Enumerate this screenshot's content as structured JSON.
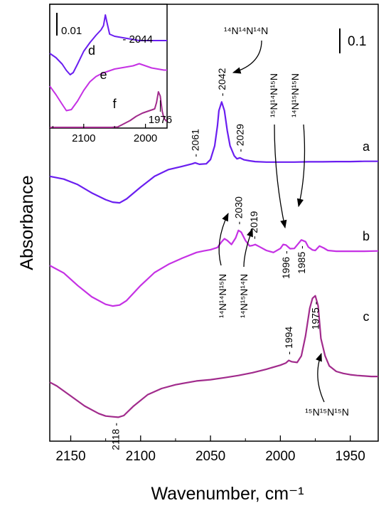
{
  "chart_data": [
    {
      "type": "line",
      "xlabel": "Wavenumber, cm⁻¹",
      "ylabel": "Absorbance",
      "x_reversed": true,
      "xlim": [
        2165,
        1930
      ],
      "x_ticks": [
        2150,
        2100,
        2050,
        2000,
        1950
      ],
      "scale_bar": "0.1",
      "series": [
        {
          "name": "a",
          "color": "#6a1ef0",
          "x": [
            2165,
            2155,
            2145,
            2135,
            2125,
            2120,
            2115,
            2110,
            2100,
            2090,
            2080,
            2070,
            2063,
            2061,
            2058,
            2053,
            2050,
            2047,
            2045,
            2044,
            2042,
            2040,
            2038,
            2036,
            2033,
            2031,
            2029,
            2026,
            2022,
            2018,
            2010,
            2000,
            1990,
            1980,
            1970,
            1960,
            1950,
            1940,
            1930
          ],
          "y": [
            -0.062,
            -0.073,
            -0.095,
            -0.128,
            -0.155,
            -0.165,
            -0.168,
            -0.152,
            -0.105,
            -0.062,
            -0.035,
            -0.022,
            -0.012,
            -0.008,
            -0.014,
            -0.012,
            0.005,
            0.06,
            0.14,
            0.2,
            0.235,
            0.2,
            0.12,
            0.06,
            0.02,
            0.008,
            0.012,
            0.004,
            0.0,
            -0.003,
            -0.005,
            -0.005,
            -0.005,
            -0.004,
            -0.004,
            -0.003,
            -0.003,
            -0.002,
            -0.002
          ],
          "peak_labels": [
            "2061",
            "2042",
            "2029"
          ]
        },
        {
          "name": "b",
          "color": "#c531e4",
          "x": [
            2165,
            2155,
            2145,
            2135,
            2125,
            2120,
            2115,
            2110,
            2100,
            2090,
            2080,
            2070,
            2060,
            2055,
            2050,
            2045,
            2042,
            2040,
            2038,
            2035,
            2032,
            2030,
            2028,
            2025,
            2022,
            2020,
            2018,
            2015,
            2010,
            2005,
            2000,
            1998,
            1996,
            1993,
            1990,
            1987,
            1985,
            1982,
            1980,
            1977,
            1975,
            1972,
            1969,
            1966,
            1960,
            1950,
            1940,
            1930
          ],
          "y": [
            -0.06,
            -0.09,
            -0.14,
            -0.185,
            -0.215,
            -0.222,
            -0.218,
            -0.2,
            -0.14,
            -0.088,
            -0.055,
            -0.03,
            -0.008,
            -0.002,
            0.003,
            0.012,
            0.035,
            0.047,
            0.04,
            0.024,
            0.05,
            0.08,
            0.073,
            0.04,
            0.018,
            0.02,
            0.024,
            0.015,
            0.0,
            -0.008,
            0.008,
            0.024,
            0.022,
            0.007,
            0.008,
            0.028,
            0.042,
            0.035,
            0.014,
            0.002,
            0.0,
            0.018,
            0.01,
            0.0,
            -0.003,
            -0.003,
            -0.003,
            -0.002
          ],
          "peak_labels": [
            "2030",
            "2019",
            "1996",
            "1985"
          ]
        },
        {
          "name": "c",
          "color": "#a12b8c",
          "x": [
            2165,
            2160,
            2150,
            2140,
            2130,
            2125,
            2120,
            2116,
            2112,
            2105,
            2095,
            2085,
            2075,
            2060,
            2050,
            2040,
            2030,
            2020,
            2010,
            2000,
            1996,
            1994,
            1992,
            1988,
            1985,
            1982,
            1979,
            1977,
            1975,
            1973,
            1971,
            1968,
            1965,
            1960,
            1955,
            1950,
            1945,
            1940,
            1935,
            1930
          ],
          "y": [
            -0.205,
            -0.22,
            -0.26,
            -0.3,
            -0.33,
            -0.34,
            -0.343,
            -0.345,
            -0.338,
            -0.3,
            -0.255,
            -0.23,
            -0.215,
            -0.2,
            -0.195,
            -0.187,
            -0.178,
            -0.167,
            -0.153,
            -0.137,
            -0.128,
            -0.118,
            -0.123,
            -0.126,
            -0.1,
            -0.02,
            0.09,
            0.13,
            0.14,
            0.1,
            -0.03,
            -0.1,
            -0.14,
            -0.162,
            -0.17,
            -0.175,
            -0.178,
            -0.18,
            -0.182,
            -0.182
          ],
          "peak_labels": [
            "2118",
            "1994",
            "1975"
          ]
        }
      ],
      "species_annotations": [
        {
          "label": "¹⁴N¹⁴N¹⁴N",
          "points_to": "2042"
        },
        {
          "label": "¹⁵N¹⁴N¹⁵N",
          "points_to": "1996"
        },
        {
          "label": "¹⁴N¹⁵N¹⁵N",
          "points_to": "1985"
        },
        {
          "label": "¹⁴N¹⁴N¹⁵N",
          "points_to": "2030"
        },
        {
          "label": "¹⁴N¹⁵N¹⁴N",
          "points_to": "2019"
        },
        {
          "label": "¹⁵N¹⁵N¹⁵N",
          "points_to": "1975"
        }
      ]
    },
    {
      "type": "line",
      "role": "inset",
      "x_reversed": true,
      "xlim": [
        2155,
        1965
      ],
      "x_ticks": [
        2100,
        2000
      ],
      "scale_bar": "0.01",
      "series": [
        {
          "name": "d",
          "color": "#6a1ef0",
          "x": [
            2155,
            2145,
            2135,
            2128,
            2122,
            2117,
            2110,
            2100,
            2090,
            2080,
            2072,
            2068,
            2065,
            2062,
            2058,
            2050,
            2040,
            2030,
            2020,
            2010,
            2000,
            1990,
            1980,
            1970,
            1965
          ],
          "y": [
            0.0,
            -0.004,
            -0.01,
            -0.016,
            -0.02,
            -0.018,
            -0.01,
            0.002,
            0.01,
            0.017,
            0.022,
            0.026,
            0.036,
            0.028,
            0.018,
            0.016,
            0.015,
            0.014,
            0.013,
            0.012,
            0.012,
            0.012,
            0.012,
            0.012,
            0.012
          ],
          "peak_labels": [
            "2044"
          ]
        },
        {
          "name": "e",
          "color": "#c531e4",
          "x": [
            2155,
            2145,
            2135,
            2128,
            2120,
            2110,
            2100,
            2090,
            2080,
            2070,
            2060,
            2050,
            2040,
            2030,
            2020,
            2010,
            2000,
            1990,
            1980,
            1970,
            1965
          ],
          "y": [
            -0.008,
            -0.016,
            -0.025,
            -0.031,
            -0.03,
            -0.022,
            -0.012,
            -0.004,
            0.001,
            0.004,
            0.006,
            0.008,
            0.009,
            0.01,
            0.011,
            0.013,
            0.011,
            0.009,
            0.008,
            0.007,
            0.007
          ]
        },
        {
          "name": "f",
          "color": "#a12b8c",
          "x": [
            2155,
            2145,
            2135,
            2125,
            2115,
            2105,
            2095,
            2085,
            2075,
            2065,
            2055,
            2045,
            2035,
            2025,
            2015,
            2005,
            1995,
            1990,
            1985,
            1982,
            1979,
            1976,
            1973,
            1970,
            1965
          ],
          "y": [
            -0.028,
            -0.038,
            -0.046,
            -0.05,
            -0.049,
            -0.045,
            -0.04,
            -0.034,
            -0.03,
            -0.026,
            -0.022,
            -0.019,
            -0.016,
            -0.013,
            -0.009,
            -0.006,
            -0.004,
            -0.003,
            -0.002,
            0.004,
            0.014,
            0.01,
            -0.004,
            -0.011,
            -0.014
          ],
          "peak_labels": [
            "1976"
          ]
        }
      ]
    }
  ]
}
